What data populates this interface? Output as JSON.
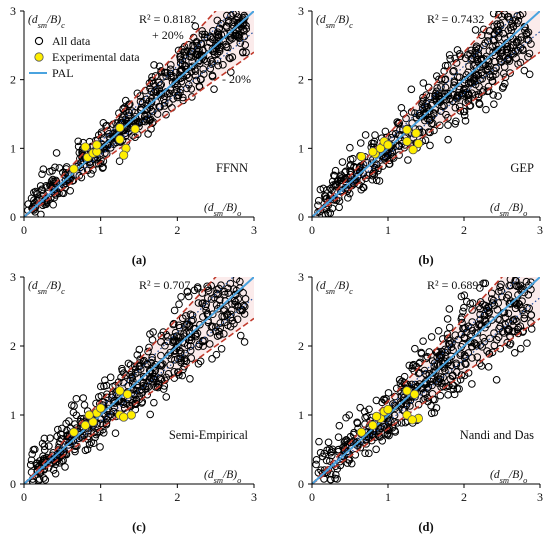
{
  "chart_data": [
    {
      "type": "scatter",
      "panel_label": "(a)",
      "method_label": "FFNN",
      "r2_text": "R² = 0.8182",
      "ylabel": "(d_sm/B)_c",
      "xlabel": "(d_sm/B)_o",
      "xlim": [
        0,
        3
      ],
      "ylim": [
        0,
        3
      ],
      "xticks": [
        0,
        1,
        2,
        3
      ],
      "yticks": [
        0,
        1,
        2,
        3
      ],
      "spread": 0.19,
      "seed": 11,
      "bands": {
        "upper_label": "+ 20%",
        "lower_label": "- 20%"
      },
      "legend": {
        "position": "top-left",
        "entries": [
          "All data",
          "Experimental data",
          "PAL"
        ]
      },
      "experimental": [
        [
          0.65,
          0.7
        ],
        [
          0.83,
          0.87
        ],
        [
          0.9,
          0.93
        ],
        [
          0.95,
          0.95
        ],
        [
          0.8,
          1.02
        ],
        [
          0.95,
          1.05
        ],
        [
          1.25,
          1.13
        ],
        [
          1.33,
          1.0
        ],
        [
          1.25,
          1.3
        ],
        [
          1.45,
          1.28
        ],
        [
          1.3,
          0.9
        ]
      ]
    },
    {
      "type": "scatter",
      "panel_label": "(b)",
      "method_label": "GEP",
      "r2_text": "R² = 0.7432",
      "ylabel": "(d_sm/B)_c",
      "xlabel": "(d_sm/B)_o",
      "xlim": [
        0,
        3
      ],
      "ylim": [
        0,
        3
      ],
      "xticks": [
        0,
        1,
        2,
        3
      ],
      "yticks": [
        0,
        1,
        2,
        3
      ],
      "spread": 0.24,
      "seed": 23,
      "experimental": [
        [
          0.65,
          0.88
        ],
        [
          0.83,
          0.92
        ],
        [
          0.9,
          1.0
        ],
        [
          0.95,
          1.1
        ],
        [
          0.8,
          0.95
        ],
        [
          1.0,
          1.05
        ],
        [
          1.25,
          1.27
        ],
        [
          1.37,
          1.22
        ],
        [
          1.25,
          1.1
        ],
        [
          1.4,
          1.07
        ],
        [
          1.33,
          0.98
        ]
      ]
    },
    {
      "type": "scatter",
      "panel_label": "(c)",
      "method_label": "Semi-Empirical",
      "r2_text": "R² = 0.707",
      "ylabel": "(d_sm/B)_c",
      "xlabel": "(d_sm/B)_o",
      "xlim": [
        0,
        3
      ],
      "ylim": [
        0,
        3
      ],
      "xticks": [
        0,
        1,
        2,
        3
      ],
      "yticks": [
        0,
        1,
        2,
        3
      ],
      "spread": 0.26,
      "seed": 37,
      "experimental": [
        [
          0.65,
          0.75
        ],
        [
          0.8,
          0.85
        ],
        [
          0.9,
          0.9
        ],
        [
          0.95,
          1.03
        ],
        [
          1.0,
          1.1
        ],
        [
          0.85,
          1.0
        ],
        [
          1.25,
          1.35
        ],
        [
          1.35,
          1.3
        ],
        [
          1.25,
          1.0
        ],
        [
          1.4,
          1.0
        ],
        [
          1.3,
          0.97
        ]
      ]
    },
    {
      "type": "scatter",
      "panel_label": "(d)",
      "method_label": "Nandi and Das",
      "r2_text": "R² = 0.6897",
      "ylabel": "(d_sm/B)_c",
      "xlabel": "(d_sm/B)_o",
      "xlim": [
        0,
        3
      ],
      "ylim": [
        0,
        3
      ],
      "xticks": [
        0,
        1,
        2,
        3
      ],
      "yticks": [
        0,
        1,
        2,
        3
      ],
      "spread": 0.28,
      "seed": 51,
      "experimental": [
        [
          0.65,
          0.75
        ],
        [
          0.8,
          0.85
        ],
        [
          0.9,
          0.95
        ],
        [
          0.95,
          1.05
        ],
        [
          1.0,
          1.08
        ],
        [
          0.85,
          0.98
        ],
        [
          1.25,
          1.35
        ],
        [
          1.35,
          1.3
        ],
        [
          1.25,
          1.0
        ],
        [
          1.4,
          0.95
        ],
        [
          1.32,
          0.93
        ]
      ]
    }
  ],
  "colors": {
    "pal_line": "#4aa3df",
    "band_line": "#c0392b",
    "band_dotted": "#1f4e9c",
    "experimental_fill": "#ffee00",
    "marker_edge": "#000000"
  }
}
